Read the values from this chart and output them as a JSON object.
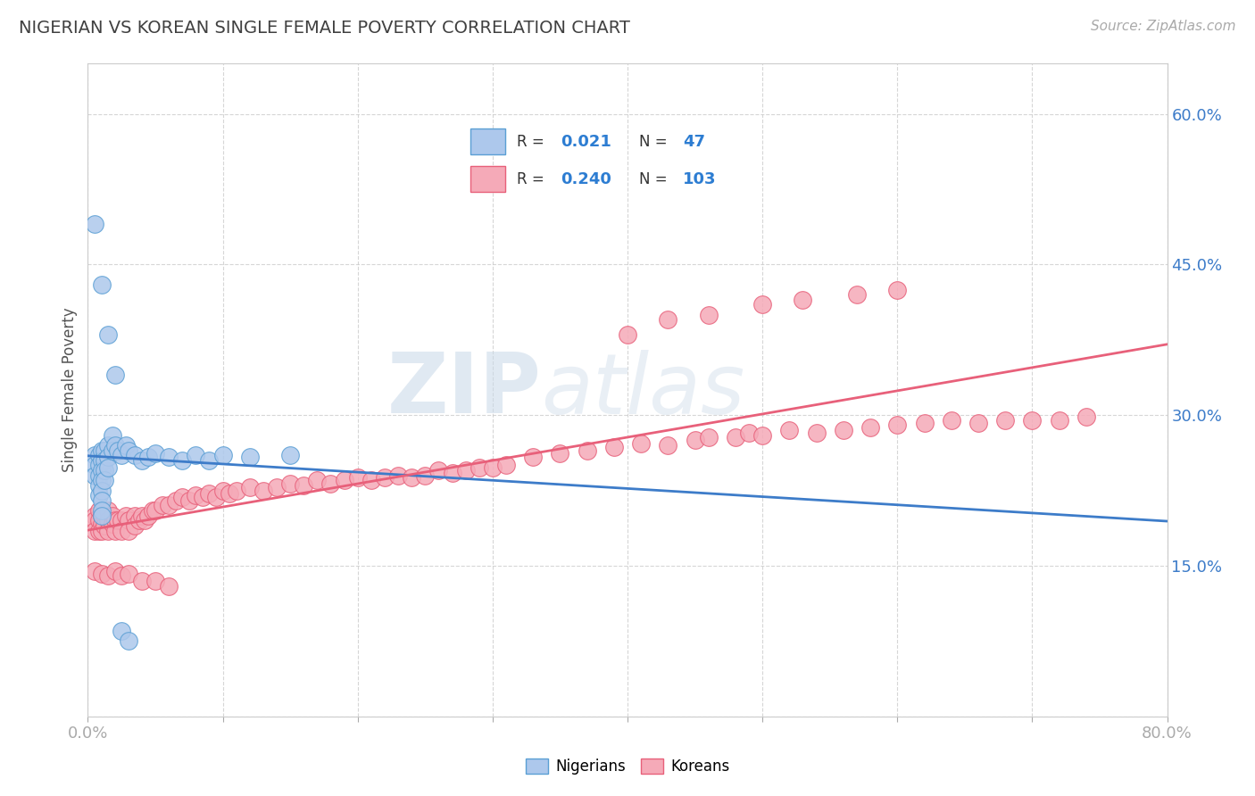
{
  "title": "NIGERIAN VS KOREAN SINGLE FEMALE POVERTY CORRELATION CHART",
  "source": "Source: ZipAtlas.com",
  "ylabel": "Single Female Poverty",
  "xlim": [
    0.0,
    0.8
  ],
  "ylim": [
    0.0,
    0.65
  ],
  "xticks": [
    0.0,
    0.1,
    0.2,
    0.3,
    0.4,
    0.5,
    0.6,
    0.7,
    0.8
  ],
  "xticklabels": [
    "0.0%",
    "",
    "",
    "",
    "",
    "",
    "",
    "",
    "80.0%"
  ],
  "yticks": [
    0.0,
    0.15,
    0.3,
    0.45,
    0.6
  ],
  "yticklabels_right": [
    "",
    "15.0%",
    "30.0%",
    "45.0%",
    "60.0%"
  ],
  "nigerian_R": "0.021",
  "nigerian_N": "47",
  "korean_R": "0.240",
  "korean_N": "103",
  "nigerian_color": "#adc8ec",
  "korean_color": "#f5aab8",
  "nigerian_edge_color": "#5a9fd4",
  "korean_edge_color": "#e8607a",
  "nigerian_line_color": "#3d7cc9",
  "korean_line_color": "#e8607a",
  "title_color": "#404040",
  "source_color": "#aaaaaa",
  "legend_text_color": "#2d7dd2",
  "axis_tick_color": "#3d7cc9",
  "background_color": "#ffffff",
  "grid_color": "#cccccc",
  "watermark_zip": "ZIP",
  "watermark_atlas": "atlas",
  "nigerian_scatter_x": [
    0.005,
    0.005,
    0.005,
    0.008,
    0.008,
    0.008,
    0.008,
    0.008,
    0.01,
    0.01,
    0.01,
    0.01,
    0.01,
    0.01,
    0.01,
    0.01,
    0.012,
    0.012,
    0.012,
    0.012,
    0.015,
    0.015,
    0.015,
    0.018,
    0.018,
    0.02,
    0.022,
    0.025,
    0.028,
    0.03,
    0.035,
    0.04,
    0.045,
    0.05,
    0.06,
    0.07,
    0.08,
    0.09,
    0.1,
    0.12,
    0.15,
    0.005,
    0.01,
    0.015,
    0.02,
    0.025,
    0.03
  ],
  "nigerian_scatter_y": [
    0.26,
    0.25,
    0.24,
    0.26,
    0.25,
    0.24,
    0.23,
    0.22,
    0.265,
    0.255,
    0.245,
    0.235,
    0.225,
    0.215,
    0.205,
    0.2,
    0.265,
    0.255,
    0.245,
    0.235,
    0.27,
    0.258,
    0.248,
    0.28,
    0.265,
    0.27,
    0.265,
    0.26,
    0.27,
    0.265,
    0.26,
    0.255,
    0.258,
    0.262,
    0.258,
    0.255,
    0.26,
    0.255,
    0.26,
    0.258,
    0.26,
    0.49,
    0.43,
    0.38,
    0.34,
    0.085,
    0.075
  ],
  "korean_scatter_x": [
    0.005,
    0.005,
    0.005,
    0.008,
    0.008,
    0.008,
    0.01,
    0.01,
    0.01,
    0.012,
    0.012,
    0.015,
    0.015,
    0.015,
    0.018,
    0.018,
    0.02,
    0.02,
    0.022,
    0.025,
    0.025,
    0.028,
    0.03,
    0.03,
    0.035,
    0.035,
    0.038,
    0.04,
    0.042,
    0.045,
    0.048,
    0.05,
    0.055,
    0.06,
    0.065,
    0.07,
    0.075,
    0.08,
    0.085,
    0.09,
    0.095,
    0.1,
    0.105,
    0.11,
    0.12,
    0.13,
    0.14,
    0.15,
    0.16,
    0.17,
    0.18,
    0.19,
    0.2,
    0.21,
    0.22,
    0.23,
    0.24,
    0.25,
    0.26,
    0.27,
    0.28,
    0.29,
    0.3,
    0.31,
    0.33,
    0.35,
    0.37,
    0.39,
    0.41,
    0.43,
    0.45,
    0.46,
    0.48,
    0.49,
    0.5,
    0.52,
    0.54,
    0.56,
    0.58,
    0.6,
    0.62,
    0.64,
    0.66,
    0.68,
    0.7,
    0.72,
    0.74,
    0.005,
    0.01,
    0.015,
    0.02,
    0.025,
    0.03,
    0.04,
    0.05,
    0.06,
    0.4,
    0.43,
    0.46,
    0.5,
    0.53,
    0.57,
    0.6
  ],
  "korean_scatter_y": [
    0.2,
    0.195,
    0.185,
    0.205,
    0.195,
    0.185,
    0.2,
    0.192,
    0.185,
    0.2,
    0.19,
    0.205,
    0.195,
    0.185,
    0.2,
    0.192,
    0.195,
    0.185,
    0.195,
    0.195,
    0.185,
    0.2,
    0.195,
    0.185,
    0.2,
    0.19,
    0.195,
    0.2,
    0.195,
    0.2,
    0.205,
    0.205,
    0.21,
    0.21,
    0.215,
    0.218,
    0.215,
    0.22,
    0.218,
    0.222,
    0.218,
    0.225,
    0.222,
    0.225,
    0.228,
    0.225,
    0.228,
    0.232,
    0.23,
    0.235,
    0.232,
    0.235,
    0.238,
    0.235,
    0.238,
    0.24,
    0.238,
    0.24,
    0.245,
    0.242,
    0.245,
    0.248,
    0.248,
    0.25,
    0.258,
    0.262,
    0.265,
    0.268,
    0.272,
    0.27,
    0.275,
    0.278,
    0.278,
    0.282,
    0.28,
    0.285,
    0.282,
    0.285,
    0.288,
    0.29,
    0.292,
    0.295,
    0.292,
    0.295,
    0.295,
    0.295,
    0.298,
    0.145,
    0.142,
    0.14,
    0.145,
    0.14,
    0.142,
    0.135,
    0.135,
    0.13,
    0.38,
    0.395,
    0.4,
    0.41,
    0.415,
    0.42,
    0.425
  ]
}
